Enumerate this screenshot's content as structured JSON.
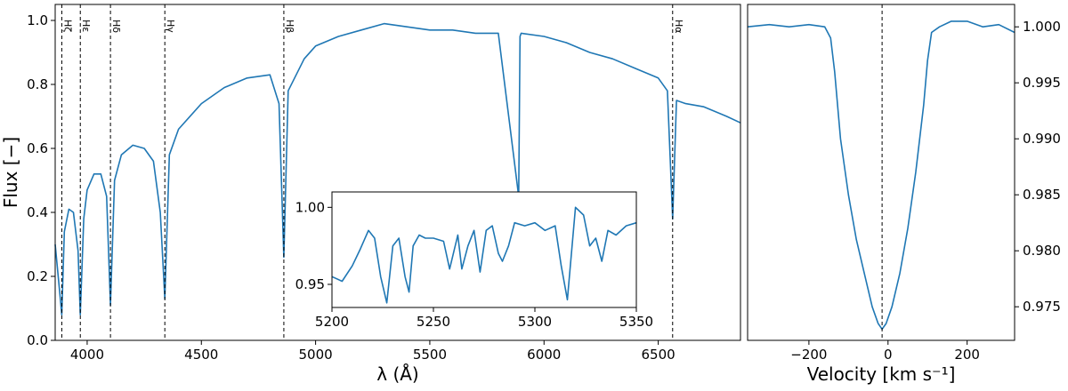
{
  "chart_data": [
    {
      "id": "spectrum",
      "type": "line",
      "xlabel": "λ (Å)",
      "ylabel": "Flux [−]",
      "xlim": [
        3860,
        6860
      ],
      "ylim": [
        0.0,
        1.05
      ],
      "xticks": [
        4000,
        4500,
        5000,
        5500,
        6000,
        6500
      ],
      "yticks": [
        0.0,
        0.2,
        0.4,
        0.6,
        0.8,
        1.0
      ],
      "ytick_labels": [
        "0.0",
        "0.2",
        "0.4",
        "0.6",
        "0.8",
        "1.0"
      ],
      "color": "#1f77b4",
      "grid": false,
      "series": [
        {
          "x": [
            3860,
            3880,
            3889,
            3900,
            3920,
            3940,
            3960,
            3970,
            3985,
            4000,
            4030,
            4060,
            4085,
            4102,
            4120,
            4150,
            4200,
            4250,
            4290,
            4320,
            4340,
            4360,
            4400,
            4500,
            4600,
            4700,
            4800,
            4840,
            4861,
            4880,
            4950,
            5000,
            5100,
            5200,
            5300,
            5400,
            5500,
            5600,
            5700,
            5800,
            5889,
            5895,
            5900,
            6000,
            6100,
            6200,
            6300,
            6400,
            6500,
            6540,
            6563,
            6580,
            6620,
            6700,
            6800,
            6860
          ],
          "y": [
            0.3,
            0.15,
            0.08,
            0.34,
            0.41,
            0.4,
            0.28,
            0.08,
            0.38,
            0.47,
            0.52,
            0.52,
            0.45,
            0.11,
            0.5,
            0.58,
            0.61,
            0.6,
            0.56,
            0.4,
            0.13,
            0.58,
            0.66,
            0.74,
            0.79,
            0.82,
            0.83,
            0.74,
            0.26,
            0.78,
            0.88,
            0.92,
            0.95,
            0.97,
            0.99,
            0.98,
            0.97,
            0.97,
            0.96,
            0.96,
            0.45,
            0.95,
            0.96,
            0.95,
            0.93,
            0.9,
            0.88,
            0.85,
            0.82,
            0.78,
            0.38,
            0.75,
            0.74,
            0.73,
            0.7,
            0.68
          ]
        }
      ],
      "annotations": [
        {
          "label": "Hζ",
          "x": 3889
        },
        {
          "label": "Hε",
          "x": 3970
        },
        {
          "label": "Hδ",
          "x": 4102
        },
        {
          "label": "Hγ",
          "x": 4340
        },
        {
          "label": "Hβ",
          "x": 4861
        },
        {
          "label": "Hα",
          "x": 6563
        }
      ]
    },
    {
      "id": "inset",
      "type": "line",
      "xlim": [
        5200,
        5350
      ],
      "ylim": [
        0.935,
        1.01
      ],
      "xticks": [
        5200,
        5250,
        5300,
        5350
      ],
      "yticks": [
        0.95,
        1.0
      ],
      "ytick_labels": [
        "0.95",
        "1.00"
      ],
      "color": "#1f77b4",
      "series": [
        {
          "x": [
            5200,
            5205,
            5210,
            5214,
            5218,
            5221,
            5224,
            5227,
            5230,
            5233,
            5236,
            5238,
            5240,
            5243,
            5246,
            5250,
            5255,
            5258,
            5262,
            5264,
            5267,
            5270,
            5273,
            5276,
            5279,
            5282,
            5284,
            5287,
            5290,
            5295,
            5300,
            5305,
            5310,
            5313,
            5316,
            5320,
            5324,
            5327,
            5330,
            5333,
            5336,
            5340,
            5345,
            5350
          ],
          "y": [
            0.955,
            0.952,
            0.962,
            0.973,
            0.985,
            0.98,
            0.955,
            0.938,
            0.975,
            0.98,
            0.955,
            0.945,
            0.975,
            0.982,
            0.98,
            0.98,
            0.978,
            0.96,
            0.982,
            0.96,
            0.975,
            0.985,
            0.958,
            0.985,
            0.988,
            0.97,
            0.965,
            0.975,
            0.99,
            0.988,
            0.99,
            0.985,
            0.988,
            0.962,
            0.94,
            1.0,
            0.995,
            0.975,
            0.98,
            0.965,
            0.985,
            0.982,
            0.988,
            0.99
          ]
        }
      ]
    },
    {
      "id": "velocity-profile",
      "type": "line",
      "xlabel": "Velocity [km s⁻¹]",
      "xlim": [
        -355,
        320
      ],
      "ylim": [
        0.972,
        1.002
      ],
      "xticks": [
        -200,
        0,
        200
      ],
      "xtick_labels": [
        "−200",
        "0",
        "200"
      ],
      "yticks": [
        0.975,
        0.98,
        0.985,
        0.99,
        0.995,
        1.0
      ],
      "ytick_labels": [
        "0.975",
        "0.980",
        "0.985",
        "0.990",
        "0.995",
        "1.000"
      ],
      "yaxis_side": "right",
      "vline_x": -15,
      "color": "#1f77b4",
      "series": [
        {
          "x": [
            -355,
            -300,
            -250,
            -200,
            -160,
            -145,
            -135,
            -120,
            -100,
            -80,
            -60,
            -40,
            -25,
            -15,
            -5,
            10,
            30,
            50,
            70,
            90,
            100,
            110,
            130,
            160,
            200,
            240,
            280,
            320
          ],
          "y": [
            1.0,
            1.0002,
            1.0,
            1.0002,
            1.0,
            0.999,
            0.996,
            0.99,
            0.985,
            0.981,
            0.978,
            0.975,
            0.9735,
            0.973,
            0.9735,
            0.975,
            0.978,
            0.982,
            0.987,
            0.993,
            0.997,
            0.9995,
            1.0,
            1.0005,
            1.0005,
            1.0,
            1.0002,
            0.9995
          ]
        }
      ]
    }
  ]
}
